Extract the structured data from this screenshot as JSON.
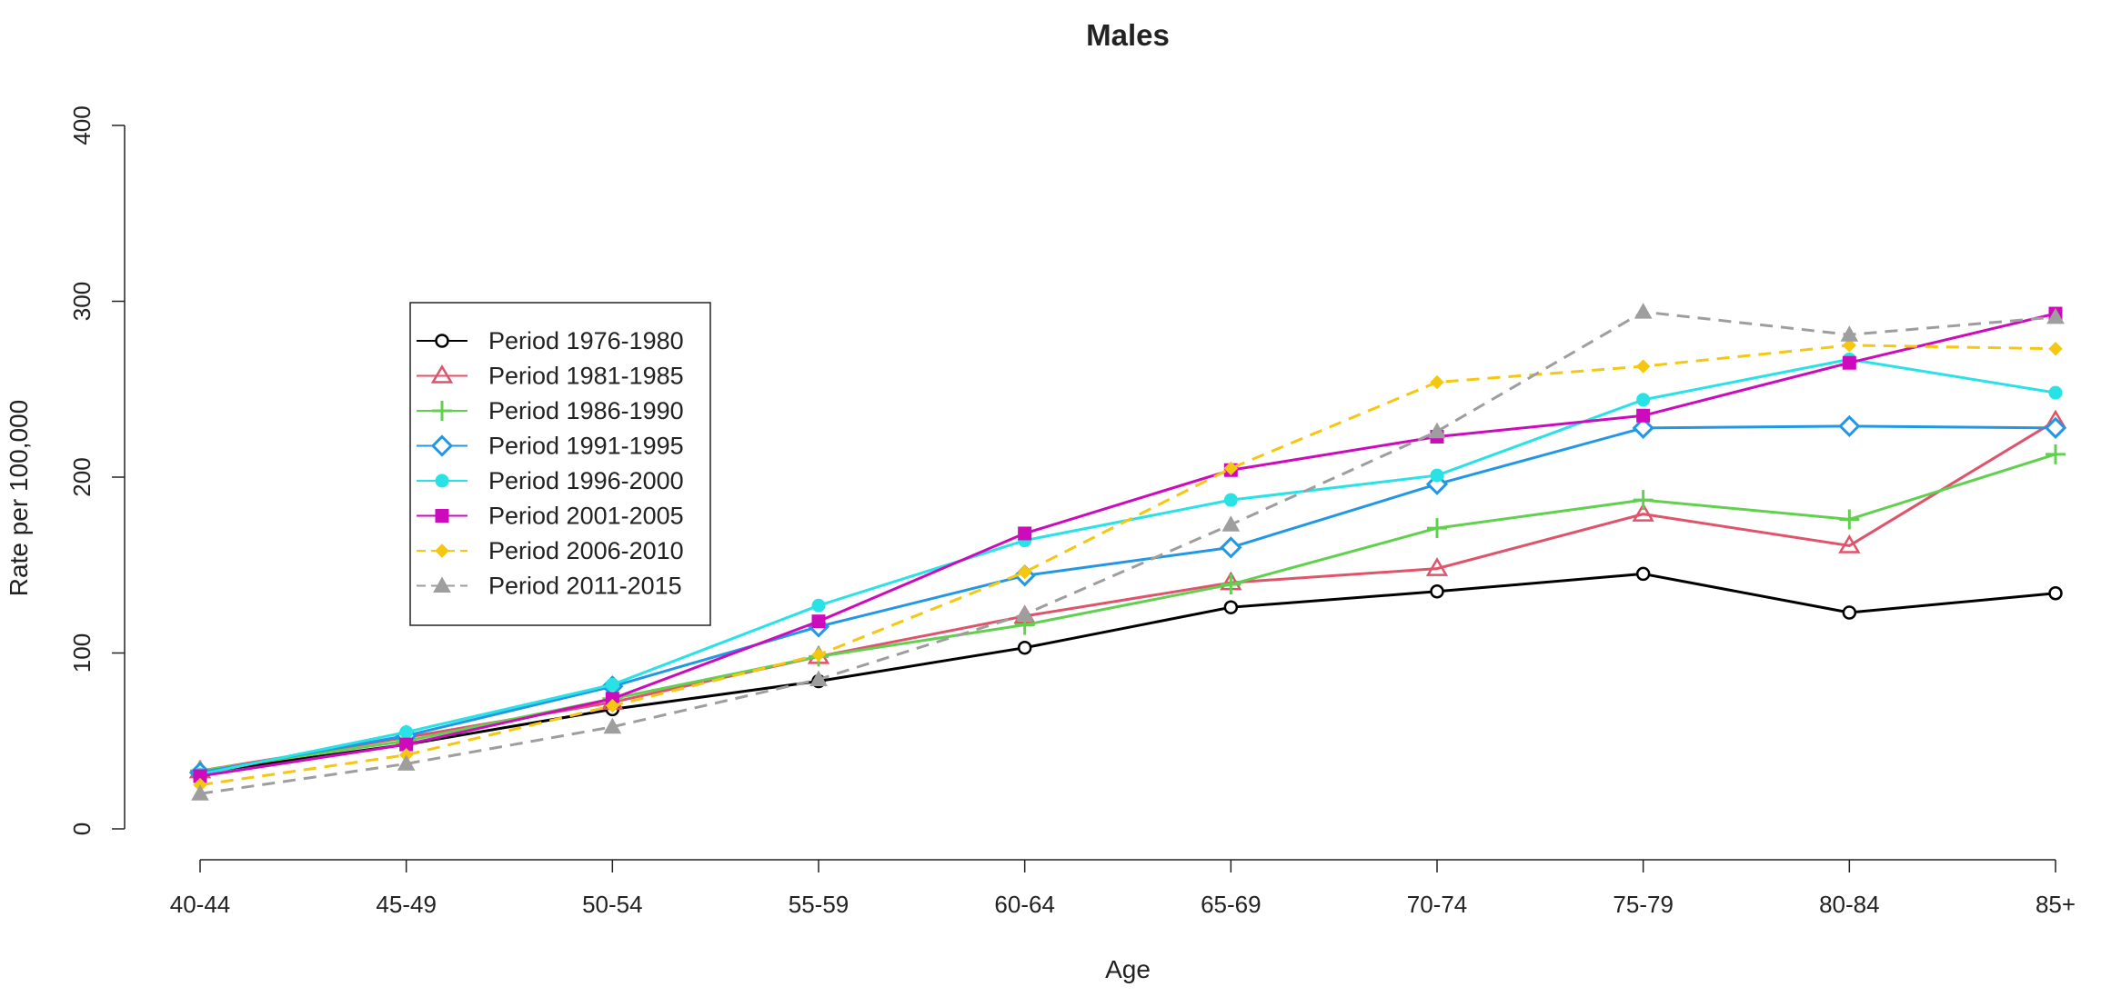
{
  "chart_data": {
    "type": "line",
    "title": "Males",
    "xlabel": "Age",
    "ylabel": "Rate per 100,000",
    "categories": [
      "40-44",
      "45-49",
      "50-54",
      "55-59",
      "60-64",
      "65-69",
      "70-74",
      "75-79",
      "80-84",
      "85+"
    ],
    "ylim": [
      0,
      400
    ],
    "yticks": [
      0,
      100,
      200,
      300,
      400
    ],
    "grid": false,
    "legend_position": "left",
    "series": [
      {
        "name": "Period 1976-1980",
        "color": "#000000",
        "marker": "open-circle",
        "dash": false,
        "values": [
          32,
          48,
          68,
          84,
          103,
          126,
          135,
          145,
          123,
          134
        ]
      },
      {
        "name": "Period 1981-1985",
        "color": "#df536b",
        "marker": "open-triangle",
        "dash": false,
        "values": [
          33,
          52,
          72,
          98,
          121,
          140,
          148,
          179,
          161,
          232
        ]
      },
      {
        "name": "Period 1986-1990",
        "color": "#61d04f",
        "marker": "plus",
        "dash": false,
        "values": [
          33,
          50,
          74,
          98,
          116,
          139,
          171,
          187,
          176,
          213
        ]
      },
      {
        "name": "Period 1991-1995",
        "color": "#2297e6",
        "marker": "open-diamond",
        "dash": false,
        "values": [
          32,
          53,
          81,
          115,
          144,
          160,
          196,
          228,
          229,
          228
        ]
      },
      {
        "name": "Period 1996-2000",
        "color": "#28e2e5",
        "marker": "filled-circle",
        "dash": false,
        "values": [
          31,
          55,
          82,
          127,
          164,
          187,
          201,
          244,
          267,
          248
        ]
      },
      {
        "name": "Period 2001-2005",
        "color": "#cd0bbc",
        "marker": "filled-square",
        "dash": false,
        "values": [
          30,
          48,
          74,
          118,
          168,
          204,
          223,
          235,
          265,
          293
        ]
      },
      {
        "name": "Period 2006-2010",
        "color": "#f5c710",
        "marker": "filled-diamond",
        "dash": true,
        "values": [
          25,
          42,
          70,
          99,
          146,
          205,
          254,
          263,
          275,
          273
        ]
      },
      {
        "name": "Period 2011-2015",
        "color": "#9e9e9e",
        "marker": "filled-triangle",
        "dash": true,
        "values": [
          20,
          37,
          58,
          85,
          122,
          173,
          226,
          294,
          281,
          291
        ]
      }
    ]
  }
}
